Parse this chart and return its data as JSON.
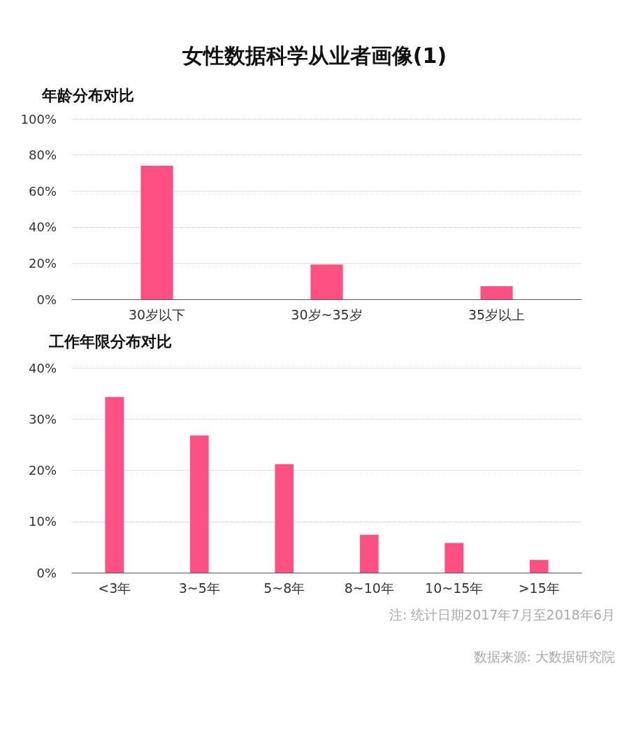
{
  "chart_data": [
    {
      "type": "bar",
      "title": "女性数据科学从业者画像(1)",
      "subtitle": "年龄分布对比",
      "categories": [
        "30岁以下",
        "30岁~35岁",
        "35岁以上"
      ],
      "values": [
        74,
        19.3,
        7.3
      ],
      "color": "#ff5083",
      "ylim": [
        0,
        100
      ],
      "yticks": [
        {
          "value": 0,
          "label": "0%"
        },
        {
          "value": 20,
          "label": "20%"
        },
        {
          "value": 40,
          "label": "40%"
        },
        {
          "value": 60,
          "label": "60%"
        },
        {
          "value": 80,
          "label": "80%"
        },
        {
          "value": 100,
          "label": "100%"
        }
      ],
      "grid": "y"
    },
    {
      "type": "bar",
      "title": "工作年限分布对比",
      "categories": [
        "<3年",
        "3~5年",
        "5~8年",
        "8~10年",
        "10~15年",
        ">15年"
      ],
      "values": [
        34.3,
        26.8,
        21.2,
        7.4,
        5.8,
        2.5
      ],
      "color": "#ff5083",
      "ylim": [
        0,
        40
      ],
      "yticks": [
        {
          "value": 0,
          "label": "0%"
        },
        {
          "value": 10,
          "label": "10%"
        },
        {
          "value": 20,
          "label": "20%"
        },
        {
          "value": 30,
          "label": "30%"
        },
        {
          "value": 40,
          "label": "40%"
        }
      ],
      "grid": "y",
      "annotations": [
        "注: 统计日期2017年7月至2018年6月",
        "数据来源: 大数据研究院"
      ]
    }
  ]
}
